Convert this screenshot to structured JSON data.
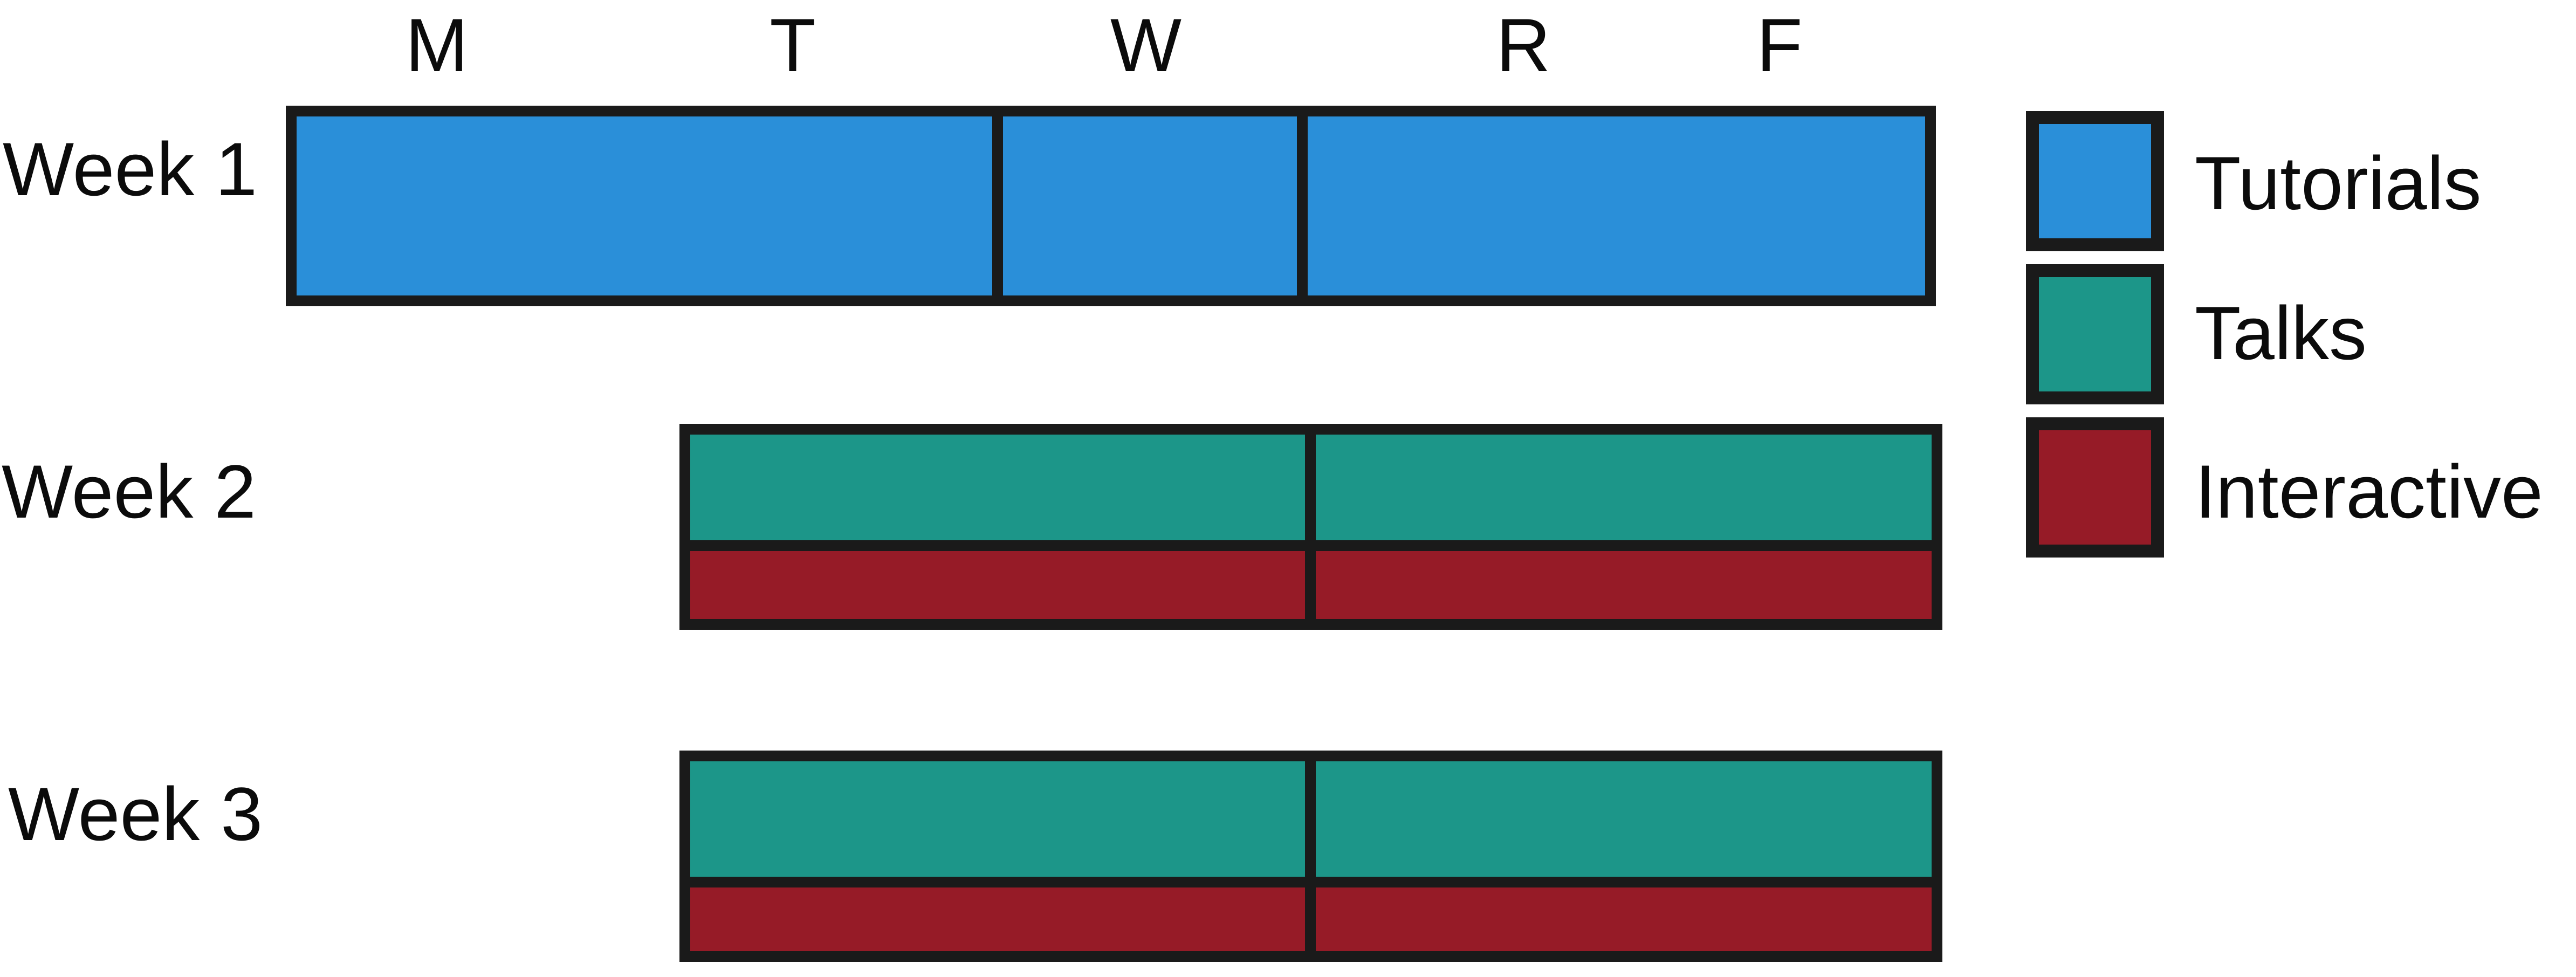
{
  "days": [
    "M",
    "T",
    "W",
    "R",
    "F"
  ],
  "weeks": [
    "Week 1",
    "Week 2",
    "Week 3"
  ],
  "legend": [
    {
      "key": "tutorials",
      "label": "Tutorials",
      "color": "#2a8fd9"
    },
    {
      "key": "talks",
      "label": "Talks",
      "color": "#1c9689"
    },
    {
      "key": "interactive",
      "label": "Interactive",
      "color": "#961b27"
    }
  ],
  "border_color": "#1a1a1a"
}
